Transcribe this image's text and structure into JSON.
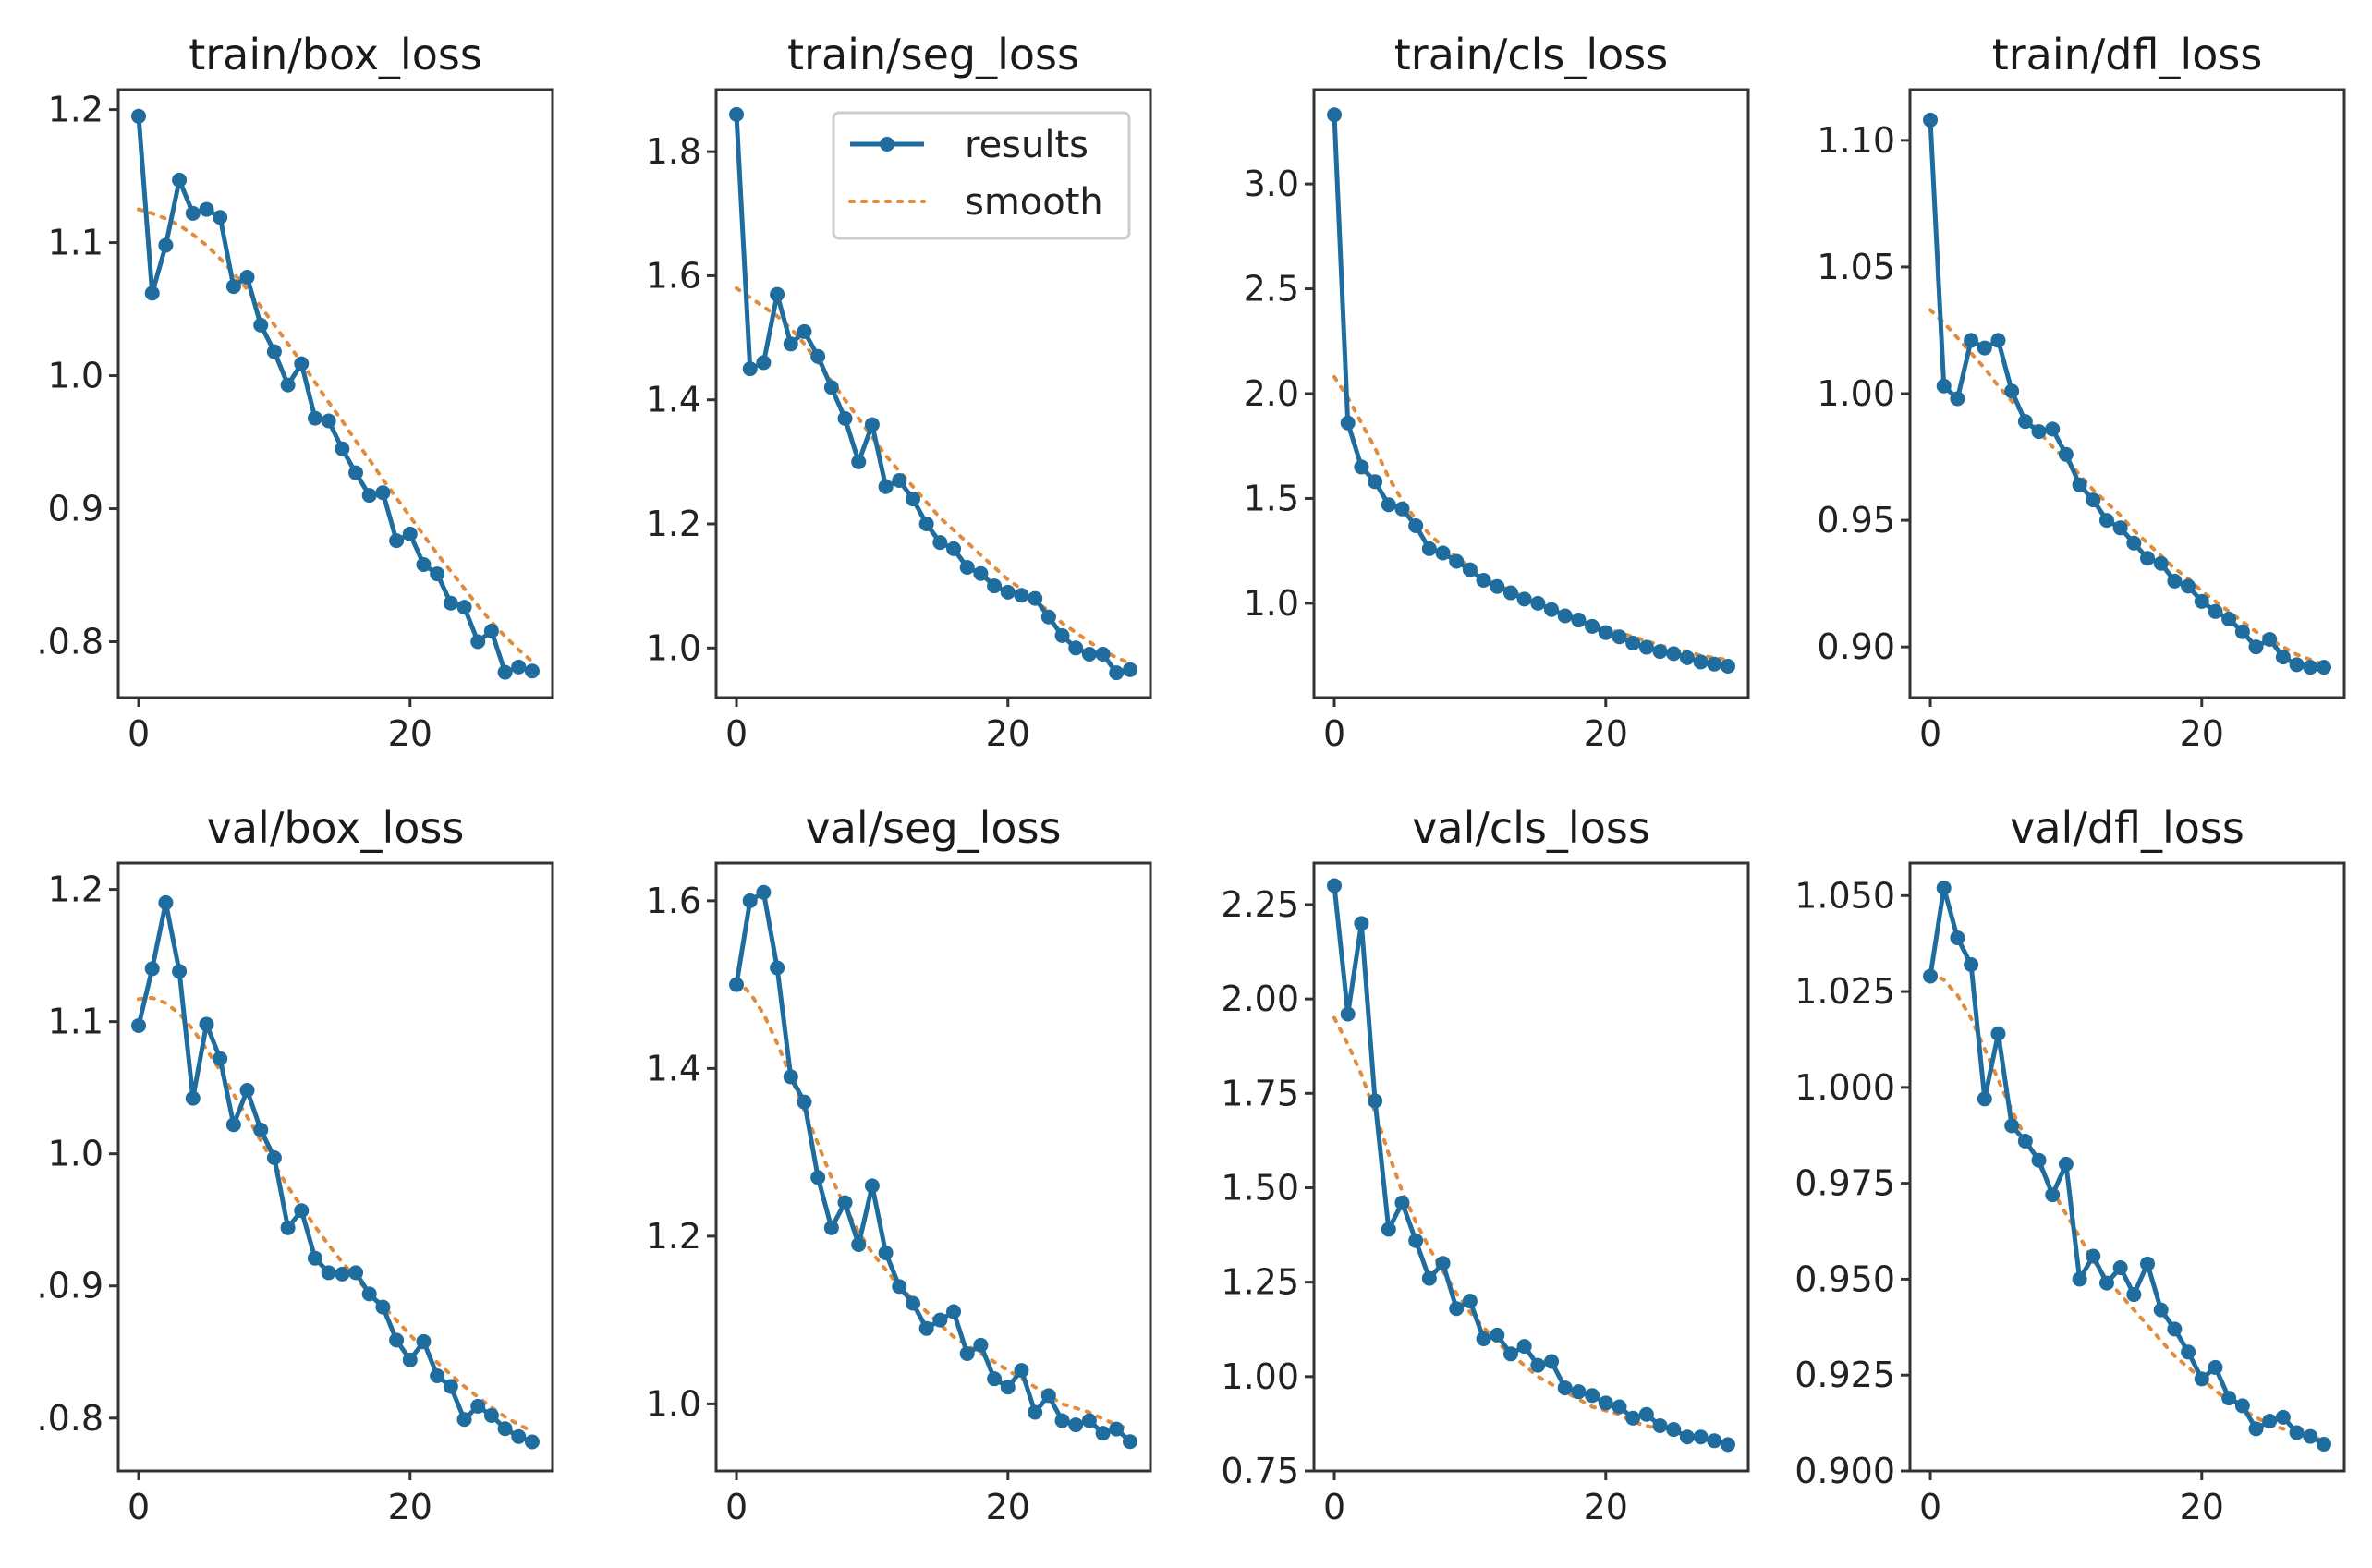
{
  "chart_data": [
    {
      "type": "line",
      "title": "train/box_loss",
      "xlim": [
        -1.5,
        30.5
      ],
      "ylim": [
        0.758,
        1.215
      ],
      "xticks": [
        0,
        20
      ],
      "yticks": [
        0.8,
        0.9,
        1.0,
        1.1,
        1.2
      ],
      "ytick_labels": [
        ".0.8",
        "0.9",
        "1.0",
        "1.1",
        "1.2"
      ],
      "series": [
        {
          "name": "results",
          "values": [
            1.195,
            1.062,
            1.098,
            1.147,
            1.122,
            1.125,
            1.119,
            1.067,
            1.074,
            1.038,
            1.018,
            0.993,
            1.009,
            0.968,
            0.966,
            0.945,
            0.927,
            0.91,
            0.912,
            0.876,
            0.881,
            0.858,
            0.851,
            0.829,
            0.826,
            0.8,
            0.808,
            0.777,
            0.781,
            0.778
          ]
        },
        {
          "name": "smooth",
          "values": [
            1.125,
            1.122,
            1.118,
            1.113,
            1.106,
            1.098,
            1.088,
            1.077,
            1.065,
            1.052,
            1.038,
            1.024,
            1.01,
            0.995,
            0.98,
            0.966,
            0.951,
            0.937,
            0.922,
            0.908,
            0.894,
            0.88,
            0.866,
            0.853,
            0.84,
            0.827,
            0.815,
            0.804,
            0.794,
            0.785
          ]
        }
      ]
    },
    {
      "type": "line",
      "title": "train/seg_loss",
      "xlim": [
        -1.5,
        30.5
      ],
      "ylim": [
        0.92,
        1.9
      ],
      "xticks": [
        0,
        20
      ],
      "yticks": [
        1.0,
        1.2,
        1.4,
        1.6,
        1.8
      ],
      "ytick_labels": [
        "1.0",
        "1.2",
        "1.4",
        "1.6",
        "1.8"
      ],
      "legend": {
        "location": "upper right",
        "entries": [
          "results",
          "smooth"
        ]
      },
      "series": [
        {
          "name": "results",
          "values": [
            1.86,
            1.45,
            1.46,
            1.57,
            1.49,
            1.51,
            1.47,
            1.42,
            1.37,
            1.3,
            1.36,
            1.26,
            1.27,
            1.24,
            1.2,
            1.17,
            1.16,
            1.13,
            1.12,
            1.1,
            1.09,
            1.085,
            1.08,
            1.05,
            1.02,
            1.0,
            0.99,
            0.99,
            0.96,
            0.965
          ]
        },
        {
          "name": "smooth",
          "values": [
            1.58,
            1.565,
            1.55,
            1.535,
            1.515,
            1.49,
            1.46,
            1.43,
            1.4,
            1.37,
            1.34,
            1.31,
            1.285,
            1.26,
            1.235,
            1.21,
            1.19,
            1.17,
            1.15,
            1.13,
            1.11,
            1.095,
            1.075,
            1.06,
            1.04,
            1.025,
            1.01,
            0.995,
            0.985,
            0.975
          ]
        }
      ]
    },
    {
      "type": "line",
      "title": "train/cls_loss",
      "xlim": [
        -1.5,
        30.5
      ],
      "ylim": [
        0.55,
        3.45
      ],
      "xticks": [
        0,
        20
      ],
      "yticks": [
        1.0,
        1.5,
        2.0,
        2.5,
        3.0
      ],
      "ytick_labels": [
        "1.0",
        "1.5",
        "2.0",
        "2.5",
        "3.0"
      ],
      "series": [
        {
          "name": "results",
          "values": [
            3.33,
            1.86,
            1.65,
            1.58,
            1.47,
            1.45,
            1.37,
            1.26,
            1.24,
            1.2,
            1.16,
            1.11,
            1.08,
            1.05,
            1.02,
            1.0,
            0.97,
            0.94,
            0.92,
            0.89,
            0.86,
            0.84,
            0.81,
            0.79,
            0.77,
            0.76,
            0.74,
            0.72,
            0.71,
            0.7
          ]
        },
        {
          "name": "smooth",
          "values": [
            2.08,
            1.98,
            1.86,
            1.74,
            1.6,
            1.49,
            1.4,
            1.33,
            1.27,
            1.22,
            1.17,
            1.13,
            1.09,
            1.06,
            1.03,
            1.0,
            0.97,
            0.95,
            0.92,
            0.9,
            0.88,
            0.86,
            0.84,
            0.82,
            0.8,
            0.78,
            0.77,
            0.75,
            0.74,
            0.73
          ]
        }
      ]
    },
    {
      "type": "line",
      "title": "train/dfl_loss",
      "xlim": [
        -1.5,
        30.5
      ],
      "ylim": [
        0.88,
        1.12
      ],
      "xticks": [
        0,
        20
      ],
      "yticks": [
        0.9,
        0.95,
        1.0,
        1.05,
        1.1
      ],
      "ytick_labels": [
        "0.90",
        "0.95",
        "1.00",
        "1.05",
        "1.10"
      ],
      "series": [
        {
          "name": "results",
          "values": [
            1.108,
            1.003,
            0.998,
            1.021,
            1.018,
            1.021,
            1.001,
            0.989,
            0.985,
            0.986,
            0.976,
            0.964,
            0.958,
            0.95,
            0.947,
            0.941,
            0.935,
            0.933,
            0.926,
            0.924,
            0.918,
            0.914,
            0.911,
            0.906,
            0.9,
            0.903,
            0.896,
            0.893,
            0.892,
            0.892
          ]
        },
        {
          "name": "smooth",
          "values": [
            1.033,
            1.028,
            1.022,
            1.016,
            1.01,
            1.003,
            0.997,
            0.991,
            0.985,
            0.979,
            0.974,
            0.968,
            0.962,
            0.957,
            0.952,
            0.946,
            0.941,
            0.936,
            0.931,
            0.927,
            0.922,
            0.918,
            0.914,
            0.91,
            0.906,
            0.903,
            0.9,
            0.897,
            0.895,
            0.893
          ]
        }
      ]
    },
    {
      "type": "line",
      "title": "val/box_loss",
      "xlim": [
        -1.5,
        30.5
      ],
      "ylim": [
        0.76,
        1.22
      ],
      "xticks": [
        0,
        20
      ],
      "yticks": [
        0.8,
        0.9,
        1.0,
        1.1,
        1.2
      ],
      "ytick_labels": [
        ".0.8",
        ".0.9",
        "1.0",
        "1.1",
        "1.2"
      ],
      "series": [
        {
          "name": "results",
          "values": [
            1.097,
            1.14,
            1.19,
            1.138,
            1.042,
            1.098,
            1.072,
            1.022,
            1.048,
            1.018,
            0.997,
            0.944,
            0.957,
            0.921,
            0.91,
            0.909,
            0.91,
            0.894,
            0.884,
            0.859,
            0.844,
            0.858,
            0.832,
            0.824,
            0.799,
            0.809,
            0.802,
            0.792,
            0.786,
            0.782
          ]
        },
        {
          "name": "smooth",
          "values": [
            1.117,
            1.118,
            1.114,
            1.106,
            1.094,
            1.079,
            1.063,
            1.045,
            1.028,
            1.01,
            0.992,
            0.975,
            0.96,
            0.945,
            0.931,
            0.918,
            0.906,
            0.895,
            0.885,
            0.874,
            0.863,
            0.852,
            0.842,
            0.833,
            0.824,
            0.816,
            0.808,
            0.801,
            0.795,
            0.79
          ]
        }
      ]
    },
    {
      "type": "line",
      "title": "val/seg_loss",
      "xlim": [
        -1.5,
        30.5
      ],
      "ylim": [
        0.92,
        1.645
      ],
      "xticks": [
        0,
        20
      ],
      "yticks": [
        1.0,
        1.2,
        1.4,
        1.6
      ],
      "ytick_labels": [
        "1.0",
        "1.2",
        "1.4",
        "1.6"
      ],
      "series": [
        {
          "name": "results",
          "values": [
            1.5,
            1.6,
            1.61,
            1.52,
            1.39,
            1.36,
            1.27,
            1.21,
            1.24,
            1.19,
            1.26,
            1.18,
            1.14,
            1.12,
            1.09,
            1.1,
            1.11,
            1.06,
            1.07,
            1.03,
            1.02,
            1.04,
            0.99,
            1.01,
            0.98,
            0.975,
            0.98,
            0.965,
            0.97,
            0.955
          ]
        },
        {
          "name": "smooth",
          "values": [
            1.505,
            1.49,
            1.465,
            1.43,
            1.39,
            1.35,
            1.31,
            1.27,
            1.235,
            1.205,
            1.18,
            1.16,
            1.14,
            1.125,
            1.11,
            1.095,
            1.08,
            1.07,
            1.06,
            1.05,
            1.04,
            1.03,
            1.02,
            1.01,
            1.0,
            0.995,
            0.99,
            0.982,
            0.975,
            0.97
          ]
        }
      ]
    },
    {
      "type": "line",
      "title": "val/cls_loss",
      "xlim": [
        -1.5,
        30.5
      ],
      "ylim": [
        0.75,
        2.36
      ],
      "xticks": [
        0,
        20
      ],
      "yticks": [
        0.75,
        1.0,
        1.25,
        1.5,
        1.75,
        2.0,
        2.25
      ],
      "ytick_labels": [
        "0.75",
        "1.00",
        "1.25",
        "1.50",
        "1.75",
        "2.00",
        "2.25"
      ],
      "series": [
        {
          "name": "results",
          "values": [
            2.3,
            1.96,
            2.2,
            1.73,
            1.39,
            1.46,
            1.36,
            1.26,
            1.3,
            1.18,
            1.2,
            1.1,
            1.11,
            1.06,
            1.08,
            1.03,
            1.04,
            0.97,
            0.96,
            0.95,
            0.93,
            0.92,
            0.89,
            0.9,
            0.87,
            0.86,
            0.84,
            0.84,
            0.83,
            0.82
          ]
        },
        {
          "name": "smooth",
          "values": [
            1.95,
            1.88,
            1.8,
            1.7,
            1.59,
            1.49,
            1.41,
            1.34,
            1.28,
            1.22,
            1.17,
            1.13,
            1.09,
            1.06,
            1.03,
            1.0,
            0.98,
            0.96,
            0.94,
            0.92,
            0.91,
            0.9,
            0.88,
            0.87,
            0.86,
            0.85,
            0.84,
            0.835,
            0.83,
            0.82
          ]
        }
      ]
    },
    {
      "type": "line",
      "title": "val/dfl_loss",
      "xlim": [
        -1.5,
        30.5
      ],
      "ylim": [
        0.9,
        1.0585
      ],
      "xticks": [
        0,
        20
      ],
      "yticks": [
        0.9,
        0.925,
        0.95,
        0.975,
        1.0,
        1.025,
        1.05
      ],
      "ytick_labels": [
        "0.900",
        "0.925",
        "0.950",
        "0.975",
        "1.000",
        "1.025",
        "1.050"
      ],
      "series": [
        {
          "name": "results",
          "values": [
            1.029,
            1.052,
            1.039,
            1.032,
            0.997,
            1.014,
            0.99,
            0.986,
            0.981,
            0.972,
            0.98,
            0.95,
            0.956,
            0.949,
            0.953,
            0.946,
            0.954,
            0.942,
            0.937,
            0.931,
            0.924,
            0.927,
            0.919,
            0.917,
            0.911,
            0.913,
            0.914,
            0.91,
            0.909,
            0.907
          ]
        },
        {
          "name": "smooth",
          "values": [
            1.03,
            1.028,
            1.024,
            1.018,
            1.01,
            1.002,
            0.994,
            0.987,
            0.98,
            0.973,
            0.967,
            0.961,
            0.955,
            0.95,
            0.946,
            0.942,
            0.938,
            0.934,
            0.93,
            0.927,
            0.924,
            0.921,
            0.918,
            0.916,
            0.914,
            0.912,
            0.911,
            0.91,
            0.909,
            0.908
          ]
        }
      ]
    }
  ],
  "legend_labels": {
    "results": "results",
    "smooth": "smooth"
  },
  "colors": {
    "results": "#1f6c9e",
    "smooth": "#e08c3c"
  }
}
